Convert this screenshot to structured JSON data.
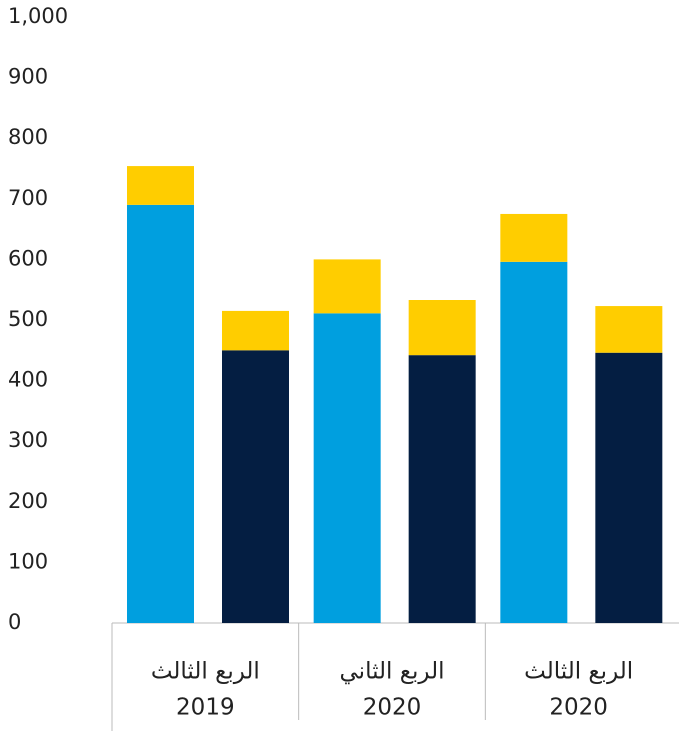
{
  "chart_data": {
    "type": "stacked-bar",
    "groups": [
      {
        "label": [
          "الربع الثالث",
          "2019"
        ],
        "bars": [
          {
            "segments": [
              {
                "value": 690,
                "color": "#009fdf"
              },
              {
                "value": 64,
                "color": "#ffcd00"
              }
            ]
          },
          {
            "segments": [
              {
                "value": 450,
                "color": "#041e42"
              },
              {
                "value": 65,
                "color": "#ffcd00"
              }
            ]
          }
        ]
      },
      {
        "label": [
          "الربع الثاني",
          "2020"
        ],
        "bars": [
          {
            "segments": [
              {
                "value": 511,
                "color": "#009fdf"
              },
              {
                "value": 89,
                "color": "#ffcd00"
              }
            ]
          },
          {
            "segments": [
              {
                "value": 442,
                "color": "#041e42"
              },
              {
                "value": 91,
                "color": "#ffcd00"
              }
            ]
          }
        ]
      },
      {
        "label": [
          "الربع الثالث",
          "2020"
        ],
        "bars": [
          {
            "segments": [
              {
                "value": 596,
                "color": "#009fdf"
              },
              {
                "value": 79,
                "color": "#ffcd00"
              }
            ]
          },
          {
            "segments": [
              {
                "value": 446,
                "color": "#041e42"
              },
              {
                "value": 77,
                "color": "#ffcd00"
              }
            ]
          }
        ]
      }
    ],
    "ylim": [
      0,
      1000
    ],
    "yticks": [
      0,
      100,
      200,
      300,
      400,
      500,
      600,
      700,
      800,
      900,
      {
        "value": 1000,
        "label": "1,000"
      }
    ]
  }
}
